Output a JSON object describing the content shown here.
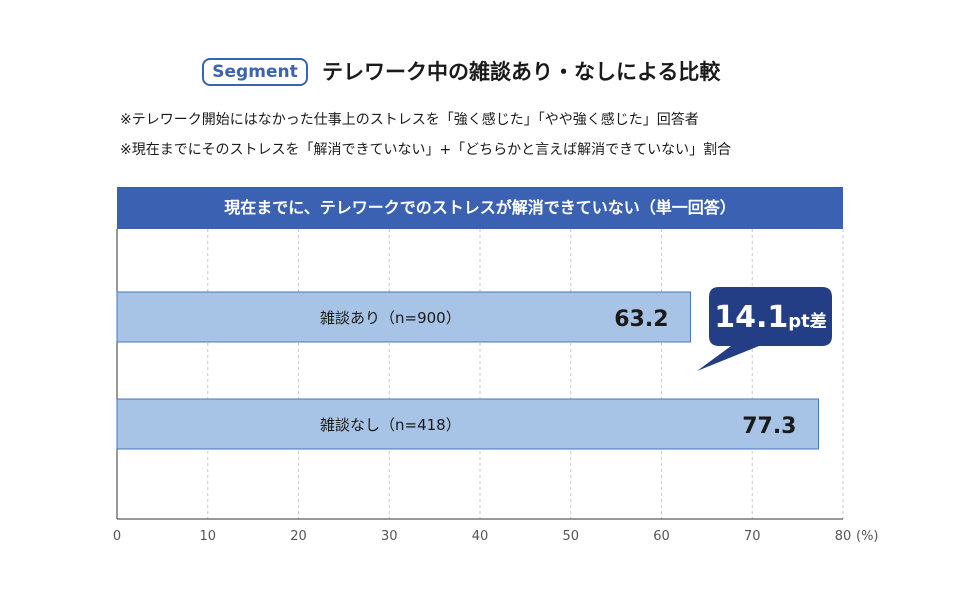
{
  "header": {
    "segment_badge": "Segment",
    "title": "テレワーク中の雑談あり・なしによる比較"
  },
  "notes": [
    "※テレワーク開始にはなかった仕事上のストレスを「強く感じた」「やや強く感じた」回答者",
    "※現在までにそのストレスを「解消できていない」+「どちらかと言えば解消できていない」割合"
  ],
  "chart_data": {
    "type": "bar",
    "orientation": "horizontal",
    "title": "現在までに、テレワークでのストレスが解消できていない（単一回答）",
    "categories": [
      "雑談あり（n=900）",
      "雑談なし（n=418）"
    ],
    "values": [
      63.2,
      77.3
    ],
    "value_labels": [
      "63.2",
      "77.3"
    ],
    "xlim": [
      0,
      80
    ],
    "xticks": [
      0,
      10,
      20,
      30,
      40,
      50,
      60,
      70,
      80
    ],
    "tick_labels": [
      "0",
      "10",
      "20",
      "30",
      "40",
      "50",
      "60",
      "70",
      "80"
    ],
    "unit_label": "(%)",
    "grid": true,
    "callout": {
      "value": "14.1",
      "unit": "pt",
      "suffix": "差"
    },
    "colors": {
      "bar_fill": "#a7c4e6",
      "bar_stroke": "#4a74bd",
      "banner": "#3a61b2",
      "callout": "#233e85",
      "grid": "#c8c8c8",
      "axis": "#333333"
    }
  }
}
